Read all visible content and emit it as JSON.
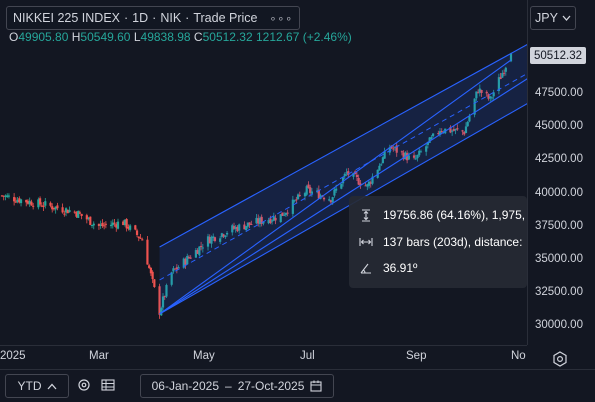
{
  "symbol": {
    "name": "NIKKEI 225 INDEX",
    "separator": "·",
    "interval": "1D",
    "exchange": "NIK",
    "mode": "Trade Price",
    "more_glyph": "∘∘∘"
  },
  "ohlc": {
    "open_key": "O",
    "open": "49905.80",
    "high_key": "H",
    "high": "50549.60",
    "low_key": "L",
    "low": "49838.98",
    "close_key": "C",
    "close": "50512.32",
    "change": "1212.67 (+2.46%)"
  },
  "currency": {
    "label": "JPY"
  },
  "price_axis": {
    "labels": [
      "50000.00",
      "47500.00",
      "45000.00",
      "42500.00",
      "40000.00",
      "37500.00",
      "35000.00",
      "32500.00",
      "30000.00"
    ],
    "last_price": "50512.32"
  },
  "time_axis": {
    "labels": [
      "2025",
      "Mar",
      "May",
      "Jul",
      "Sep",
      "No"
    ]
  },
  "measure_tooltip": {
    "price_change": "19756.86 (64.16%), 1,975,",
    "bars": "137 bars (203d), distance:",
    "angle": "36.91º"
  },
  "bottom_bar": {
    "range_button": "YTD",
    "date_from": "06-Jan-2025",
    "date_separator": "–",
    "date_to": "27-Oct-2025"
  },
  "colors": {
    "background": "#131722",
    "up": "#26a69a",
    "down": "#ef5350",
    "channel_line": "#2962ff",
    "channel_fill": "rgba(41,98,255,0.15)",
    "text": "#d1d4dc"
  },
  "icons": {
    "more": "more-dots-icon",
    "currency_dropdown": "chevron-down-icon",
    "chart_settings": "gear-icon",
    "range_chevron": "chevron-up-icon",
    "compare": "compare-icon",
    "calendar": "calendar-icon",
    "price_change": "vertical-arrows-icon",
    "bars": "horizontal-arrows-icon",
    "angle": "angle-icon"
  },
  "chart_data": {
    "type": "candlestick",
    "symbol": "NIKKEI 225 INDEX",
    "interval": "1D",
    "x_range": [
      "2025-01-06",
      "2025-10-27"
    ],
    "x_ticks": [
      "2025",
      "Mar",
      "May",
      "Jul",
      "Sep",
      "No"
    ],
    "y_ticks": [
      30000,
      32500,
      35000,
      37500,
      40000,
      42500,
      45000,
      47500,
      50000
    ],
    "ylim": [
      29200,
      52200
    ],
    "grid": false,
    "last_price": 50512.32,
    "close_path": [
      {
        "date": "2025-01-06",
        "close": 39800
      },
      {
        "date": "2025-01-20",
        "close": 39400
      },
      {
        "date": "2025-02-03",
        "close": 39000
      },
      {
        "date": "2025-02-17",
        "close": 38600
      },
      {
        "date": "2025-03-03",
        "close": 37500
      },
      {
        "date": "2025-03-17",
        "close": 37800
      },
      {
        "date": "2025-03-28",
        "close": 36500
      },
      {
        "date": "2025-04-07",
        "close": 31100
      },
      {
        "date": "2025-04-14",
        "close": 34000
      },
      {
        "date": "2025-04-21",
        "close": 34800
      },
      {
        "date": "2025-05-05",
        "close": 36500
      },
      {
        "date": "2025-05-19",
        "close": 37300
      },
      {
        "date": "2025-06-02",
        "close": 37800
      },
      {
        "date": "2025-06-16",
        "close": 38300
      },
      {
        "date": "2025-07-01",
        "close": 40200
      },
      {
        "date": "2025-07-15",
        "close": 39600
      },
      {
        "date": "2025-07-24",
        "close": 41500
      },
      {
        "date": "2025-08-05",
        "close": 40500
      },
      {
        "date": "2025-08-18",
        "close": 43500
      },
      {
        "date": "2025-09-01",
        "close": 42400
      },
      {
        "date": "2025-09-16",
        "close": 44800
      },
      {
        "date": "2025-09-30",
        "close": 44600
      },
      {
        "date": "2025-10-08",
        "close": 47800
      },
      {
        "date": "2025-10-15",
        "close": 47000
      },
      {
        "date": "2025-10-27",
        "close": 50512.32
      }
    ],
    "measure": {
      "price_change": 19756.86,
      "percent_change": 64.16,
      "bars": 137,
      "days": 203,
      "angle_deg": 36.91
    }
  }
}
